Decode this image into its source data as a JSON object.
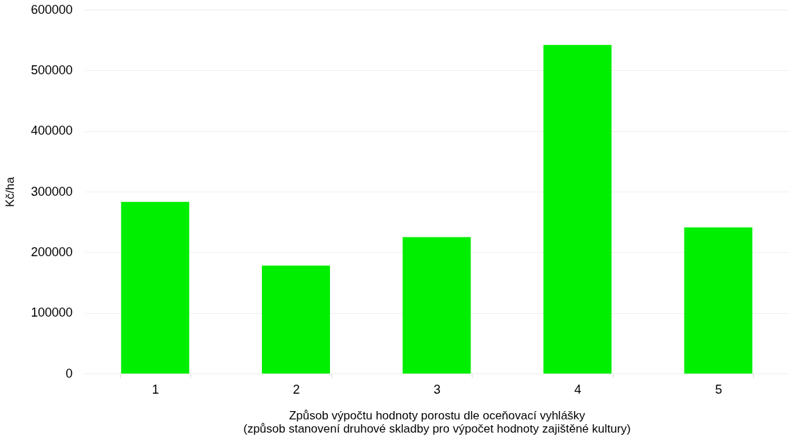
{
  "chart_data": {
    "type": "bar",
    "categories": [
      "1",
      "2",
      "3",
      "4",
      "5"
    ],
    "values": [
      283000,
      178000,
      225000,
      542000,
      241000
    ],
    "color": "#00ee00",
    "ylabel": "Kč/ha",
    "xlabel": "Způsob výpočtu hodnoty porostu dle oceňovací vyhlášky\n(způsob stanovení druhové skladby pro výpočet hodnoty zajištěné kultury)",
    "ylim": [
      0,
      600000
    ],
    "yticks": [
      0,
      100000,
      200000,
      300000,
      400000,
      500000,
      600000
    ],
    "grid": "y"
  }
}
